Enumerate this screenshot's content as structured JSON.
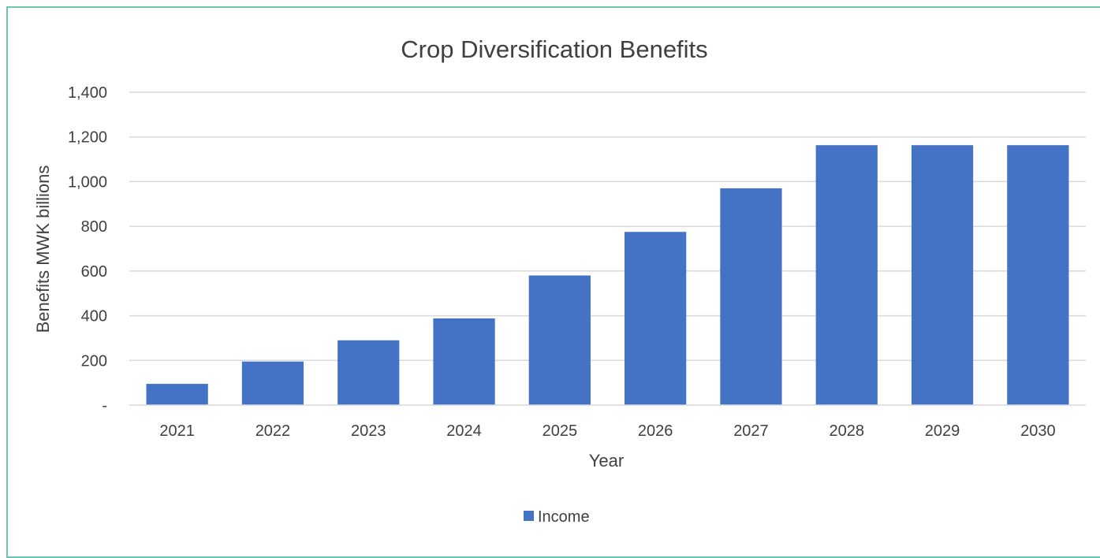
{
  "chart_data": {
    "type": "bar",
    "title": "Crop Diversification Benefits",
    "xlabel": "Year",
    "ylabel": "Benefits  MWK billions",
    "categories": [
      "2021",
      "2022",
      "2023",
      "2024",
      "2025",
      "2026",
      "2027",
      "2028",
      "2029",
      "2030"
    ],
    "series": [
      {
        "name": "Income",
        "values": [
          95,
          195,
          290,
          388,
          580,
          775,
          970,
          1163,
          1163,
          1163
        ],
        "color": "#4472c4"
      }
    ],
    "ylim": [
      0,
      1400
    ],
    "yticks": [
      "-",
      "200",
      "400",
      "600",
      "800",
      "1,000",
      "1,200",
      "1,400"
    ],
    "grid": true,
    "legend_position": "bottom"
  }
}
